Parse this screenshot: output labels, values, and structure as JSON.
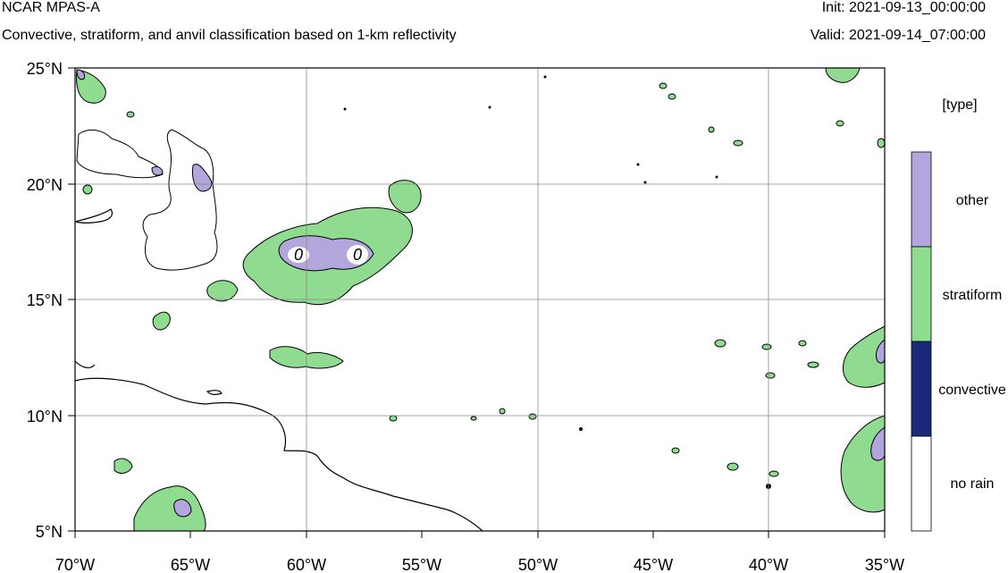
{
  "header": {
    "model": "NCAR MPAS-A",
    "description": "Convective, stratiform, and anvil classification based on 1-km reflectivity",
    "init": "Init: 2021-09-13_00:00:00",
    "valid": "Valid: 2021-09-14_07:00:00"
  },
  "map": {
    "lon_range": [
      -70,
      -35
    ],
    "lat_range": [
      5,
      25
    ],
    "lon_ticks": [
      "70°W",
      "65°W",
      "60°W",
      "55°W",
      "50°W",
      "45°W",
      "40°W",
      "35°W"
    ],
    "lat_ticks": [
      "25°N",
      "20°N",
      "15°N",
      "10°N",
      "5°N"
    ],
    "gridlines": true,
    "contour_labels": [
      "0",
      "0"
    ]
  },
  "legend": {
    "title": "[type]",
    "items": [
      {
        "label": "other",
        "color": "#b3a6dd"
      },
      {
        "label": "stratiform",
        "color": "#8fdc91"
      },
      {
        "label": "convective",
        "color": "#1a2a7a"
      },
      {
        "label": "no rain",
        "color": "#ffffff"
      }
    ]
  },
  "colors": {
    "other": "#b3a6dd",
    "stratiform": "#8fdc91",
    "convective": "#1a2a7a",
    "coast": "#000000"
  }
}
